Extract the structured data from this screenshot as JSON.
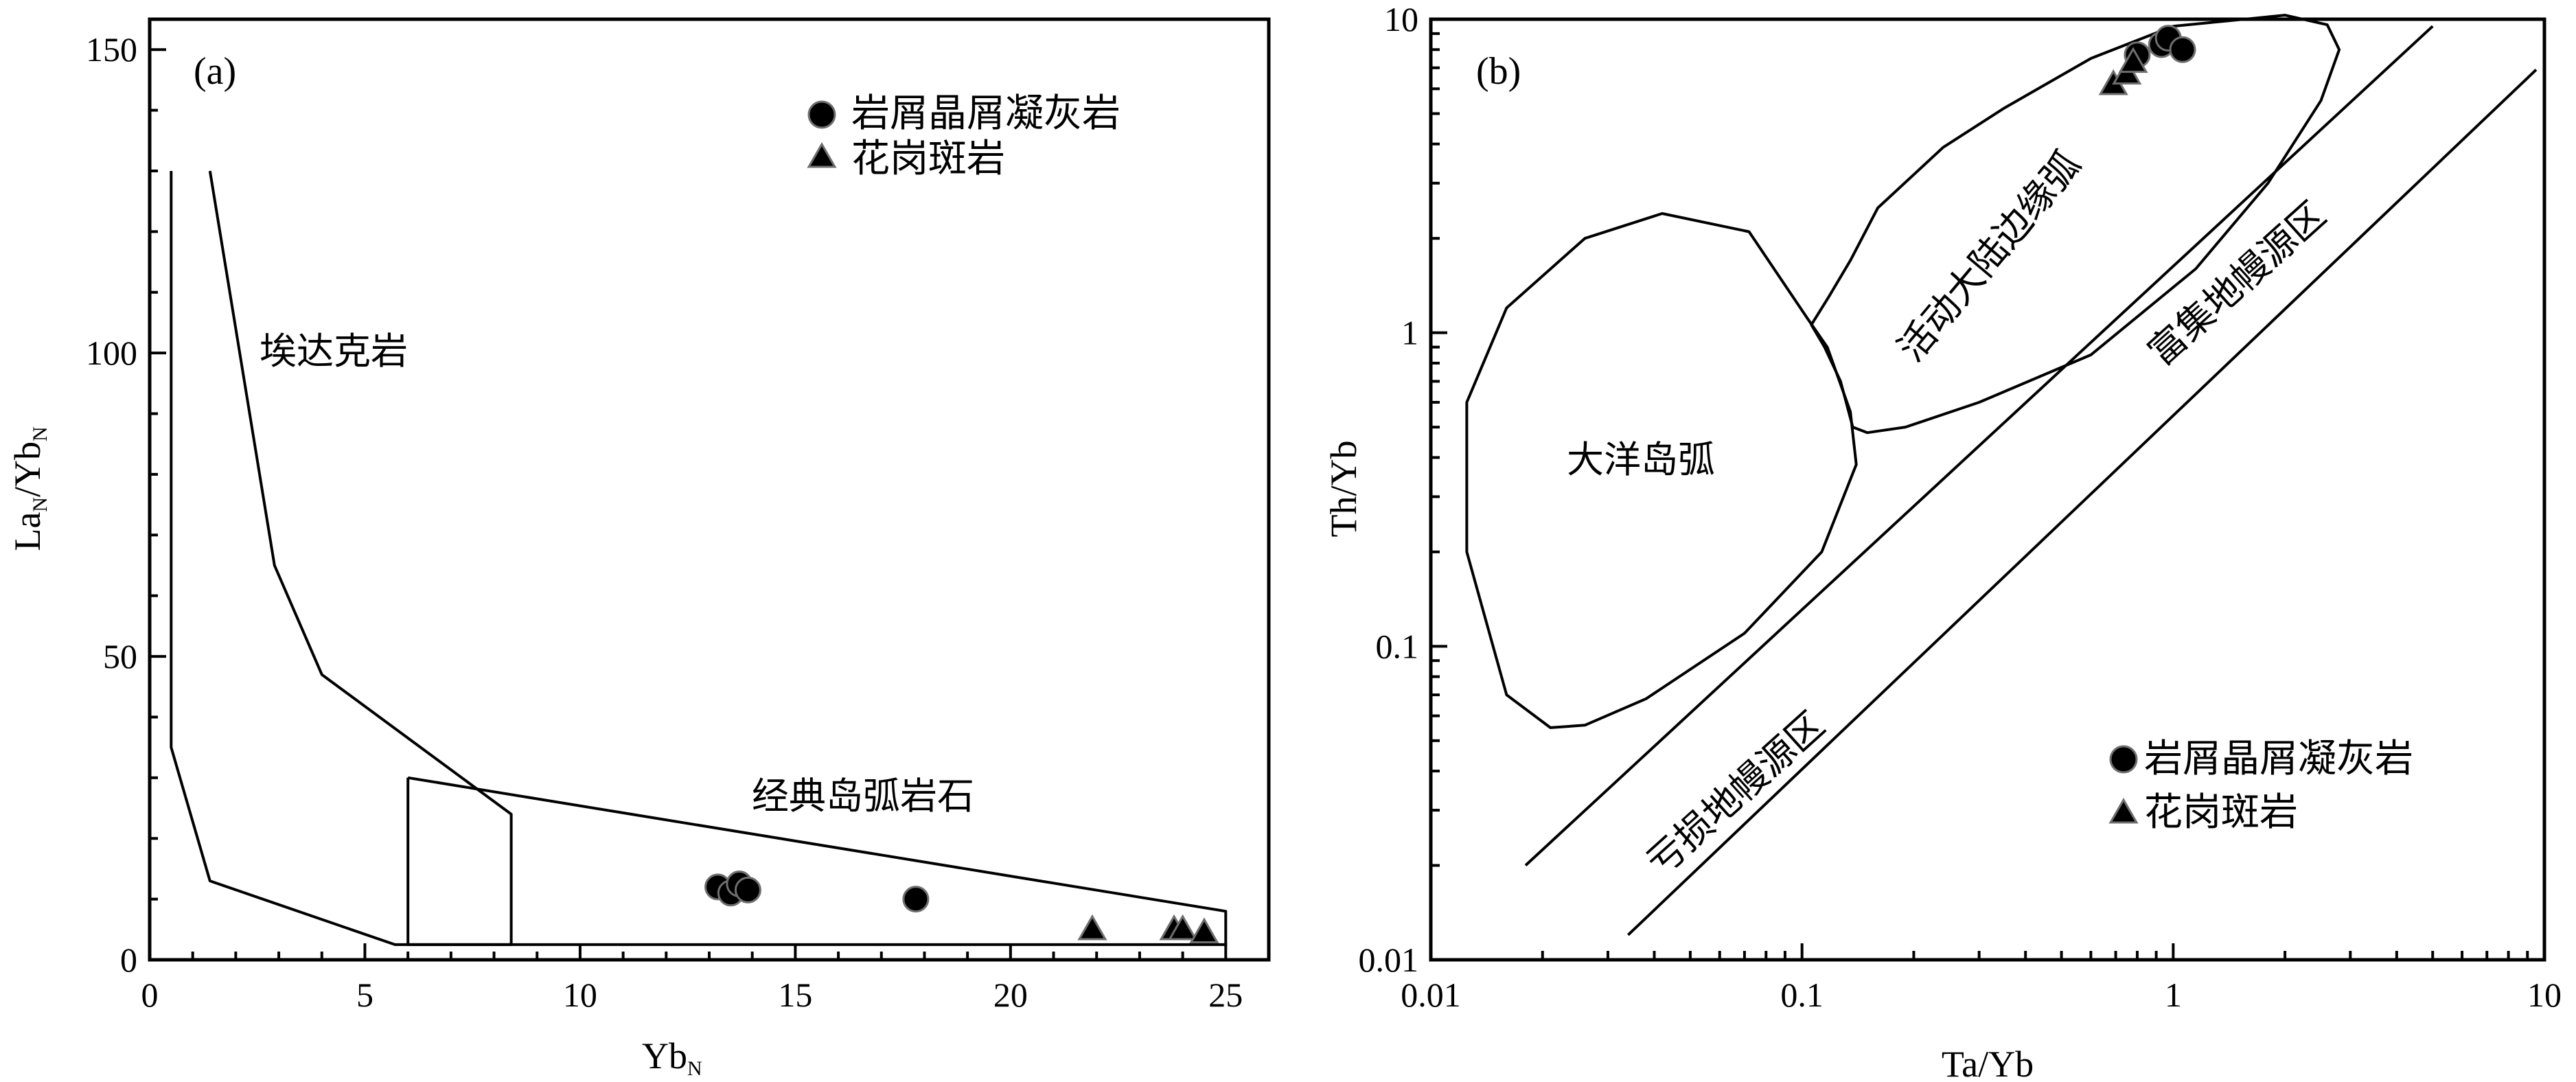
{
  "chart_data": [
    {
      "type": "scatter",
      "panel_label": "(a)",
      "xlabel": "Yb_N",
      "ylabel": "La_N/Yb_N",
      "xlim": [
        0,
        26
      ],
      "ylim": [
        0,
        155
      ],
      "x_ticks": [
        "0",
        "5",
        "10",
        "15",
        "20",
        "25"
      ],
      "y_ticks": [
        "0",
        "50",
        "100",
        "150"
      ],
      "legend_position": "top-right",
      "series": [
        {
          "name": "岩屑晶屑凝灰岩",
          "marker": "circle",
          "points": [
            [
              13.2,
              12
            ],
            [
              13.5,
              11
            ],
            [
              13.7,
              12.5
            ],
            [
              13.9,
              11.5
            ],
            [
              17.8,
              10
            ]
          ]
        },
        {
          "name": "花岗斑岩",
          "marker": "triangle",
          "points": [
            [
              21.9,
              5
            ],
            [
              23.8,
              5
            ],
            [
              24.0,
              5
            ],
            [
              24.5,
              4.5
            ]
          ]
        }
      ],
      "fields": [
        {
          "label": "埃达克岩",
          "boundary": [
            [
              1.4,
              130
            ],
            [
              2.9,
              65
            ],
            [
              4.0,
              47
            ],
            [
              8.4,
              24
            ],
            [
              8.4,
              2.5
            ],
            [
              5.7,
              2.5
            ],
            [
              1.4,
              13
            ],
            [
              0.5,
              35
            ],
            [
              0.5,
              130
            ]
          ]
        },
        {
          "label": "经典岛弧岩石",
          "boundary": [
            [
              6.0,
              30
            ],
            [
              25.0,
              8
            ],
            [
              25.0,
              2.5
            ],
            [
              6.0,
              2.5
            ],
            [
              6.0,
              30
            ]
          ]
        }
      ]
    },
    {
      "type": "scatter",
      "panel_label": "(b)",
      "xlabel": "Ta/Yb",
      "ylabel": "Th/Yb",
      "xscale": "log",
      "yscale": "log",
      "xlim": [
        0.01,
        10
      ],
      "ylim": [
        0.01,
        10
      ],
      "x_ticks": [
        "0.01",
        "0.1",
        "1",
        "10"
      ],
      "y_ticks": [
        "0.01",
        "0.1",
        "1",
        "10"
      ],
      "legend_position": "bottom-right",
      "series": [
        {
          "name": "岩屑晶屑凝灰岩",
          "marker": "circle",
          "points": [
            [
              0.8,
              7.7
            ],
            [
              0.93,
              8.3
            ],
            [
              0.97,
              8.7
            ],
            [
              1.06,
              8.0
            ]
          ]
        },
        {
          "name": "花岗斑岩",
          "marker": "triangle",
          "points": [
            [
              0.69,
              6.2
            ],
            [
              0.75,
              6.7
            ],
            [
              0.78,
              7.3
            ]
          ]
        }
      ],
      "fields": [
        {
          "label": "大洋岛弧",
          "boundary": [
            [
              0.021,
              0.055
            ],
            [
              0.016,
              0.07
            ],
            [
              0.0125,
              0.2
            ],
            [
              0.0125,
              0.6
            ],
            [
              0.016,
              1.2
            ],
            [
              0.026,
              2.0
            ],
            [
              0.042,
              2.4
            ],
            [
              0.072,
              2.1
            ],
            [
              0.104,
              1.1
            ],
            [
              0.117,
              0.9
            ],
            [
              0.135,
              0.56
            ],
            [
              0.14,
              0.38
            ],
            [
              0.113,
              0.2
            ],
            [
              0.07,
              0.11
            ],
            [
              0.038,
              0.068
            ],
            [
              0.026,
              0.056
            ],
            [
              0.021,
              0.055
            ]
          ]
        },
        {
          "label": "活动大陆边缘弧",
          "boundary": [
            [
              0.106,
              1.06
            ],
            [
              0.118,
              1.3
            ],
            [
              0.135,
              1.7
            ],
            [
              0.16,
              2.5
            ],
            [
              0.24,
              3.9
            ],
            [
              0.35,
              5.2
            ],
            [
              0.6,
              7.5
            ],
            [
              1.0,
              9.5
            ],
            [
              2.0,
              10.3
            ],
            [
              2.6,
              9.6
            ],
            [
              2.8,
              8.0
            ],
            [
              2.5,
              5.5
            ],
            [
              1.8,
              3.0
            ],
            [
              1.15,
              1.6
            ],
            [
              0.6,
              0.85
            ],
            [
              0.3,
              0.6
            ],
            [
              0.19,
              0.5
            ],
            [
              0.15,
              0.48
            ],
            [
              0.137,
              0.5
            ],
            [
              0.127,
              0.7
            ],
            [
              0.115,
              0.9
            ],
            [
              0.106,
              1.06
            ]
          ]
        },
        {
          "label": "亏损地幔源区",
          "line": [
            [
              0.018,
              0.02
            ],
            [
              5.0,
              9.5
            ]
          ]
        },
        {
          "label": "富集地幔源区",
          "line": [
            [
              0.034,
              0.012
            ],
            [
              9.5,
              6.9
            ]
          ]
        }
      ]
    }
  ]
}
